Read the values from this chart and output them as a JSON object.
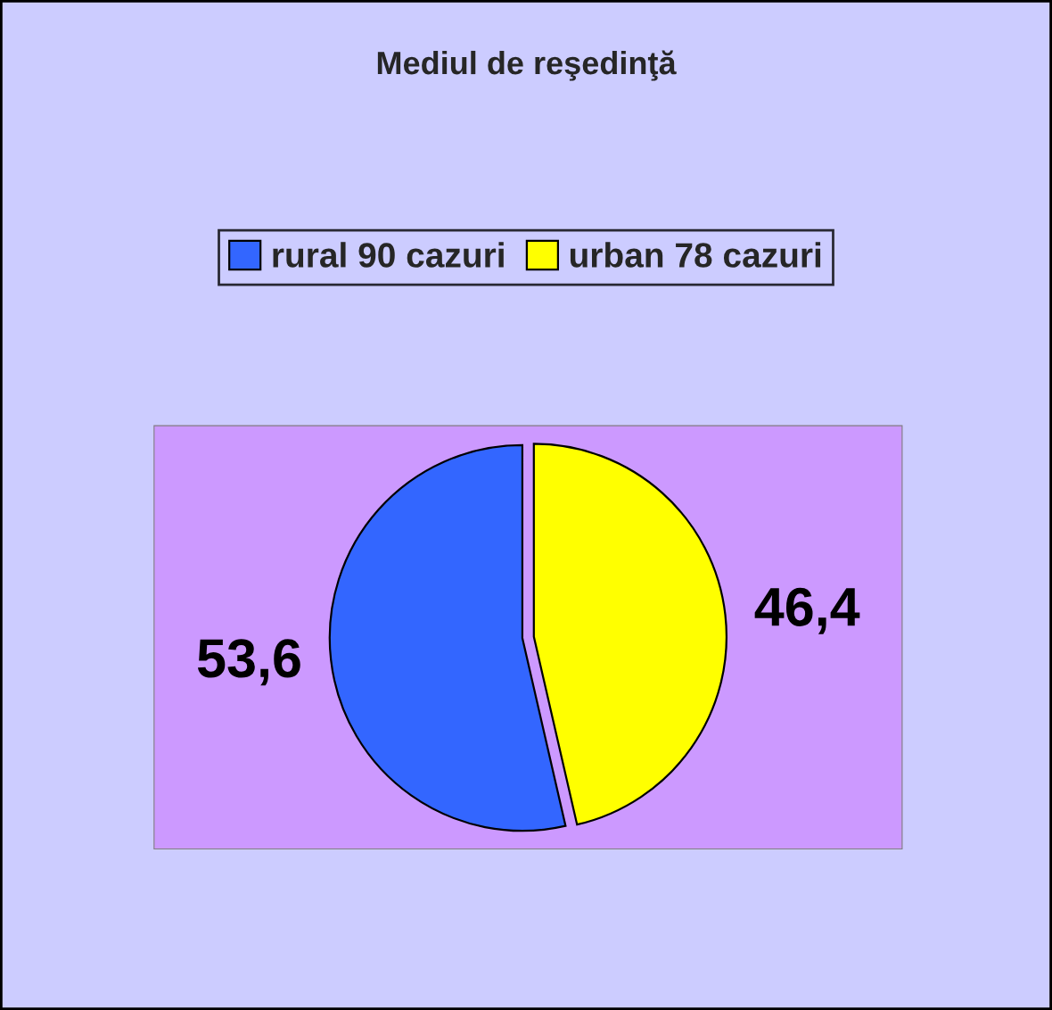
{
  "chart_data": {
    "type": "pie",
    "title": "Mediul de reşedinţă",
    "categories": [
      "rural 90 cazuri",
      "urban 78 cazuri"
    ],
    "values": [
      53.6,
      46.4
    ],
    "colors": [
      "#3366ff",
      "#ffff00"
    ],
    "value_labels": [
      "53,6",
      "46,4"
    ],
    "legend": "top"
  }
}
